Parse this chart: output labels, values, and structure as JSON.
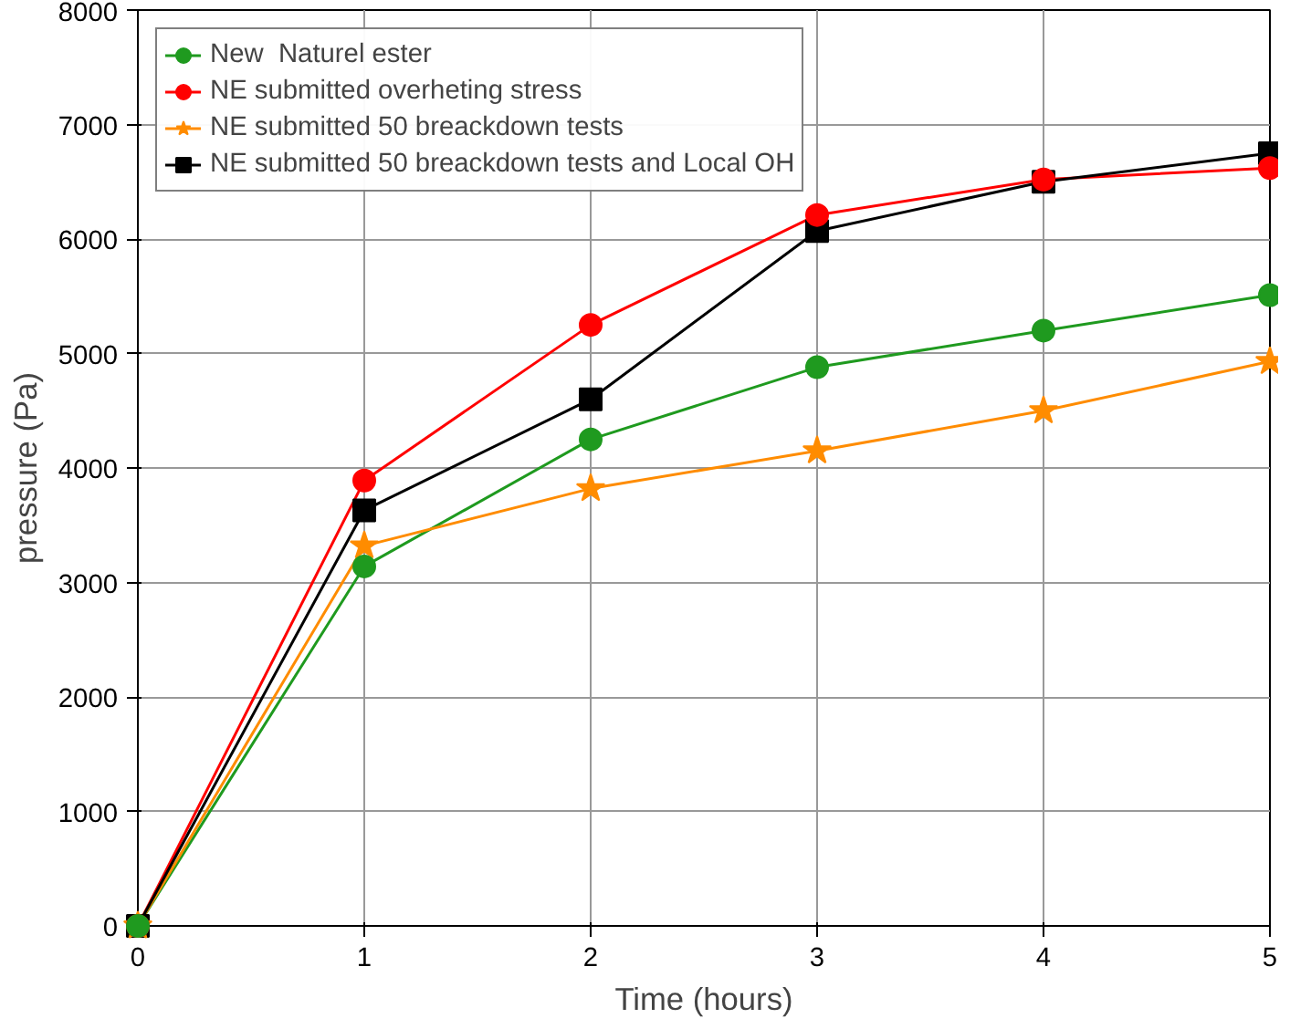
{
  "chart_data": {
    "type": "line",
    "xlabel": "Time (hours)",
    "ylabel": "pressure (Pa)",
    "x": [
      0,
      1,
      2,
      3,
      4,
      5
    ],
    "xlim": [
      0,
      5
    ],
    "xticks": [
      0,
      1,
      2,
      3,
      4,
      5
    ],
    "ylim": [
      0,
      8000
    ],
    "yticks": [
      0,
      1000,
      2000,
      3000,
      4000,
      5000,
      6000,
      7000,
      8000
    ],
    "grid": true,
    "legend": "top left",
    "line_style": "solid",
    "series": [
      {
        "name": "New  Naturel ester",
        "color": "#1f9a1f",
        "marker": "circle",
        "values": [
          0,
          3140,
          4250,
          4880,
          5200,
          5510
        ]
      },
      {
        "name": "NE submitted overheting stress",
        "color": "#ff0000",
        "marker": "circle",
        "values": [
          0,
          3890,
          5250,
          6210,
          6520,
          6620
        ]
      },
      {
        "name": "NE submitted 50 breackdown tests",
        "color": "#ff8c00",
        "marker": "star",
        "values": [
          0,
          3320,
          3820,
          4150,
          4500,
          4930
        ]
      },
      {
        "name": "NE submitted 50 breackdown tests and Local OH",
        "color": "#000000",
        "marker": "square",
        "values": [
          0,
          3630,
          4600,
          6070,
          6500,
          6750
        ]
      }
    ]
  }
}
